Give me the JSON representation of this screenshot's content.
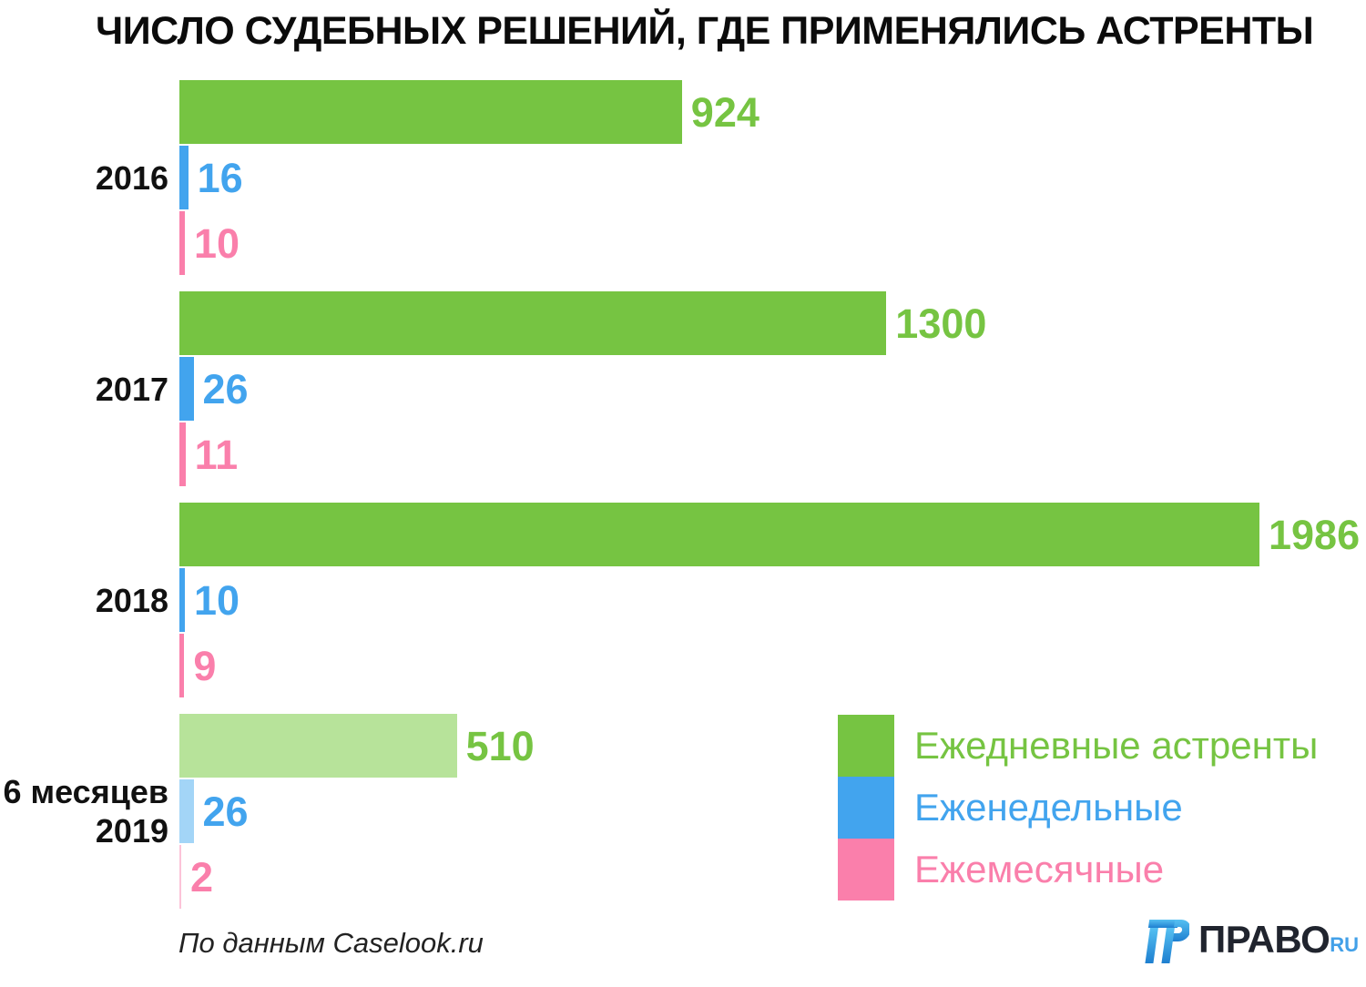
{
  "title": "ЧИСЛО СУДЕБНЫХ РЕШЕНИЙ, ГДЕ ПРИМЕНЯЛИСЬ АСТРЕНТЫ",
  "chart_data": {
    "type": "bar",
    "orientation": "horizontal",
    "title": "ЧИСЛО СУДЕБНЫХ РЕШЕНИЙ, ГДЕ ПРИМЕНЯЛИСЬ АСТРЕНТЫ",
    "xlim": [
      0,
      1986
    ],
    "grid": false,
    "legend_position": "bottom-right",
    "categories": [
      {
        "lines": [
          "2016"
        ]
      },
      {
        "lines": [
          "2017"
        ]
      },
      {
        "lines": [
          "2018"
        ]
      },
      {
        "lines": [
          "6 месяцев",
          "2019"
        ]
      }
    ],
    "muted_category": 3,
    "series": [
      {
        "name": "Ежедневные астренты",
        "color": "#76c442",
        "light_color": "#b7e39a",
        "values": [
          924,
          1300,
          1986,
          510
        ]
      },
      {
        "name": "Еженедельные",
        "color": "#42a4ee",
        "light_color": "#a3d5f7",
        "values": [
          16,
          26,
          10,
          26
        ]
      },
      {
        "name": "Ежемесячные",
        "color": "#fa7fab",
        "light_color": "#fcc3d8",
        "values": [
          10,
          11,
          9,
          2
        ]
      }
    ]
  },
  "source": "По данным Caselook.ru",
  "logo": {
    "text": "ПРАВО",
    "suffix": "RU",
    "icon_color_top": "#55c0f2",
    "icon_color_bottom": "#1e7fd0"
  }
}
